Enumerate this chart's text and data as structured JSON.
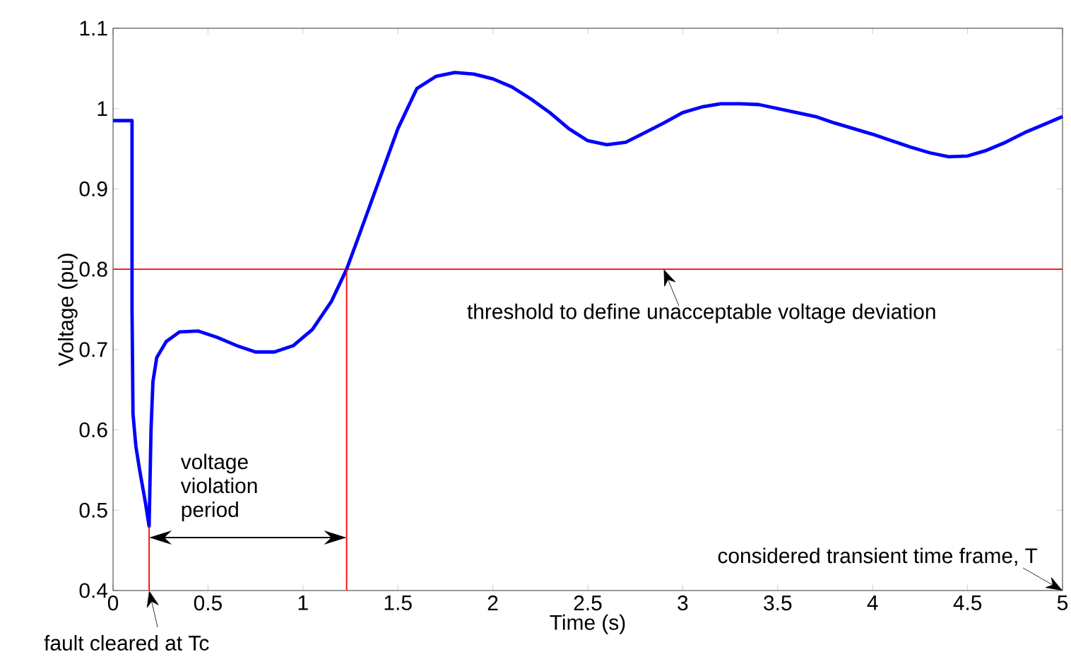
{
  "chart_data": {
    "type": "line",
    "xlabel": "Time (s)",
    "ylabel": "Voltage (pu)",
    "xlim": [
      0,
      5
    ],
    "ylim": [
      0.4,
      1.1
    ],
    "xticks": [
      0,
      0.5,
      1,
      1.5,
      2,
      2.5,
      3,
      3.5,
      4,
      4.5,
      5
    ],
    "yticks": [
      0.4,
      0.5,
      0.6,
      0.7,
      0.8,
      0.9,
      1,
      1.1
    ],
    "series": [
      {
        "color": "#0000ff",
        "x": [
          0,
          0.1,
          0.1,
          0.105,
          0.12,
          0.14,
          0.17,
          0.19,
          0.2,
          0.21,
          0.23,
          0.28,
          0.35,
          0.45,
          0.55,
          0.65,
          0.75,
          0.85,
          0.95,
          1.05,
          1.15,
          1.23,
          1.3,
          1.4,
          1.5,
          1.6,
          1.7,
          1.8,
          1.9,
          2.0,
          2.1,
          2.2,
          2.3,
          2.4,
          2.5,
          2.6,
          2.7,
          2.8,
          2.9,
          3.0,
          3.1,
          3.2,
          3.3,
          3.4,
          3.5,
          3.6,
          3.7,
          3.8,
          3.9,
          4.0,
          4.1,
          4.2,
          4.3,
          4.4,
          4.5,
          4.6,
          4.7,
          4.8,
          4.9,
          5.0
        ],
        "values": [
          0.985,
          0.985,
          0.75,
          0.62,
          0.58,
          0.55,
          0.51,
          0.48,
          0.6,
          0.66,
          0.69,
          0.71,
          0.722,
          0.723,
          0.715,
          0.705,
          0.697,
          0.697,
          0.705,
          0.725,
          0.76,
          0.8,
          0.845,
          0.91,
          0.975,
          1.025,
          1.04,
          1.045,
          1.043,
          1.037,
          1.027,
          1.012,
          0.995,
          0.975,
          0.96,
          0.955,
          0.958,
          0.97,
          0.982,
          0.995,
          1.002,
          1.006,
          1.006,
          1.005,
          1.0,
          0.995,
          0.99,
          0.982,
          0.975,
          0.968,
          0.96,
          0.952,
          0.945,
          0.94,
          0.941,
          0.948,
          0.958,
          0.97,
          0.98,
          0.99
        ]
      },
      {
        "color": "#ff0000",
        "x": [
          0.19,
          0.19
        ],
        "values": [
          0.4,
          0.48
        ]
      },
      {
        "color": "#ff0000",
        "x": [
          1.23,
          1.23
        ],
        "values": [
          0.4,
          0.8
        ]
      }
    ],
    "ref_lines": [
      {
        "axis": "y",
        "value": 0.8,
        "color": "#ff0000"
      }
    ],
    "annotations": [
      {
        "text": "threshold to define unacceptable voltage deviation",
        "x": 2.9,
        "y": 0.8
      },
      {
        "text": "voltage violation period"
      },
      "considered transient time frame, T",
      {
        "text": "fault cleared at Tc",
        "x": 0.19,
        "y": 0.4
      }
    ],
    "line_style": "solid"
  }
}
